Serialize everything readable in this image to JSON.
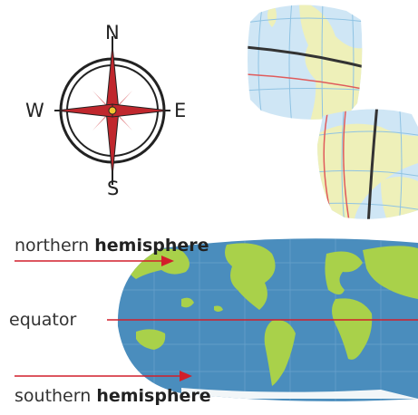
{
  "compass": {
    "north": "N",
    "south": "S",
    "east": "E",
    "west": "W"
  },
  "labels": {
    "northern_prefix": "northern",
    "northern_bold": "hemisphere",
    "equator": "equator",
    "southern_prefix": "southern",
    "southern_bold": "hemisphere"
  },
  "colors": {
    "ocean": "#4a8dbd",
    "land": "#a9d14a",
    "arrow": "#d21f2b",
    "compass_red": "#c0272d",
    "globe_ocean": "#cfe6f5",
    "globe_land": "#eef0b9"
  }
}
